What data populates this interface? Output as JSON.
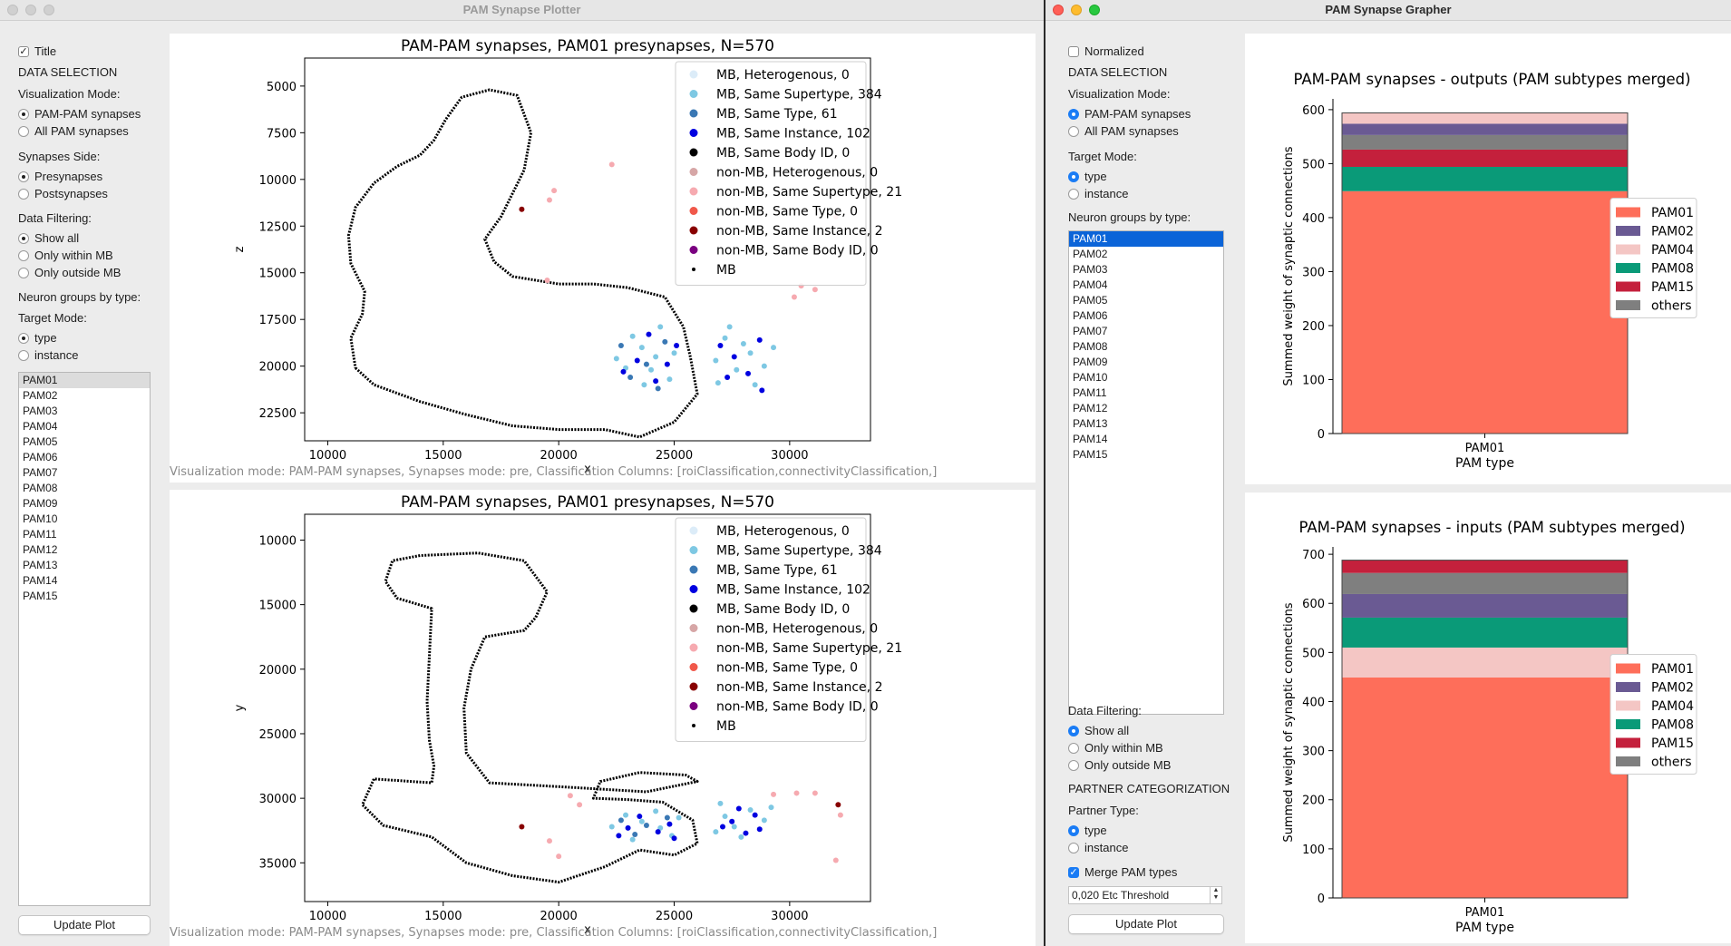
{
  "plotter": {
    "title": "PAM Synapse Plotter",
    "title_checkbox": "Title",
    "title_checked": true,
    "data_selection": "DATA SELECTION",
    "visualization_mode_label": "Visualization Mode:",
    "vis_modes": [
      "PAM-PAM synapses",
      "All PAM synapses"
    ],
    "vis_selected": 0,
    "synapses_side_label": "Synapses Side:",
    "sides": [
      "Presynapses",
      "Postsynapses"
    ],
    "side_selected": 0,
    "data_filtering_label": "Data Filtering:",
    "filters": [
      "Show all",
      "Only within MB",
      "Only outside MB"
    ],
    "filter_selected": 0,
    "neuron_groups_label": "Neuron groups by type:",
    "target_mode_label": "Target Mode:",
    "target_modes": [
      "type",
      "instance"
    ],
    "target_selected": 0,
    "list_items": [
      "PAM01",
      "PAM02",
      "PAM03",
      "PAM04",
      "PAM05",
      "PAM06",
      "PAM07",
      "PAM08",
      "PAM09",
      "PAM10",
      "PAM11",
      "PAM12",
      "PAM13",
      "PAM14",
      "PAM15"
    ],
    "list_selected": 0,
    "update_button": "Update Plot",
    "status_text": "Visualization mode: PAM-PAM synapses, Synapses mode: pre,  Classification Columns: [roiClassification,connectivityClassification,]"
  },
  "grapher": {
    "title": "PAM Synapse Grapher",
    "normalized_label": "Normalized",
    "normalized_checked": false,
    "data_selection": "DATA SELECTION",
    "visualization_mode_label": "Visualization Mode:",
    "vis_modes": [
      "PAM-PAM synapses",
      "All PAM synapses"
    ],
    "vis_selected": 0,
    "target_mode_label": "Target Mode:",
    "target_modes": [
      "type",
      "instance"
    ],
    "target_selected": 0,
    "neuron_groups_label": "Neuron groups by type:",
    "list_items": [
      "PAM01",
      "PAM02",
      "PAM03",
      "PAM04",
      "PAM05",
      "PAM06",
      "PAM07",
      "PAM08",
      "PAM09",
      "PAM10",
      "PAM11",
      "PAM12",
      "PAM13",
      "PAM14",
      "PAM15"
    ],
    "list_selected": 0,
    "data_filtering_label": "Data Filtering:",
    "filters": [
      "Show all",
      "Only within MB",
      "Only outside MB"
    ],
    "filter_selected": 0,
    "partner_categorization": "PARTNER CATEGORIZATION",
    "partner_type_label": "Partner Type:",
    "partner_types": [
      "type",
      "instance"
    ],
    "partner_selected": 0,
    "merge_label": "Merge PAM types",
    "merge_checked": true,
    "threshold_value": "0,020 Etc Threshold",
    "update_button": "Update Plot"
  },
  "colors": {
    "pam01": "#fe6e5a",
    "pam02": "#6a5a93",
    "pam04": "#f4c6c4",
    "pam08": "#0a9a78",
    "pam15": "#c4203c",
    "others": "#7f7f7f",
    "accent": "#1a7cf5"
  },
  "chart_data": [
    {
      "type": "scatter",
      "title": "PAM-PAM synapses, PAM01 presynapses, N=570",
      "xlabel": "x",
      "ylabel": "z",
      "xlim": [
        9000,
        33500
      ],
      "ylim": [
        24000,
        3500
      ],
      "y_inverted": true,
      "xticks": [
        10000,
        15000,
        20000,
        25000,
        30000
      ],
      "yticks": [
        5000,
        7500,
        10000,
        12500,
        15000,
        17500,
        20000,
        22500
      ],
      "legend_position": "upper right",
      "legend": [
        {
          "label": "MB, Heterogenous, 0",
          "color": "#dcecf8"
        },
        {
          "label": "MB, Same Supertype, 384",
          "color": "#7ec8e3"
        },
        {
          "label": "MB, Same Type, 61",
          "color": "#3a78b4"
        },
        {
          "label": "MB, Same Instance, 102",
          "color": "#0000e0"
        },
        {
          "label": "MB, Same Body ID, 0",
          "color": "#000000"
        },
        {
          "label": "non-MB, Heterogenous, 0",
          "color": "#d6a6a6"
        },
        {
          "label": "non-MB, Same Supertype, 21",
          "color": "#f6aab0"
        },
        {
          "label": "non-MB, Same Type, 0",
          "color": "#f0584a"
        },
        {
          "label": "non-MB, Same Instance, 2",
          "color": "#880000"
        },
        {
          "label": "non-MB, Same Body ID, 0",
          "color": "#7a0080"
        },
        {
          "label": "MB",
          "color": "#000000",
          "small": true
        }
      ],
      "outline": [
        [
          11200,
          20100
        ],
        [
          12000,
          21000
        ],
        [
          14000,
          21900
        ],
        [
          16000,
          22600
        ],
        [
          18000,
          23200
        ],
        [
          20000,
          23400
        ],
        [
          22000,
          23400
        ],
        [
          23500,
          23800
        ],
        [
          25000,
          23000
        ],
        [
          26000,
          21500
        ],
        [
          25700,
          19500
        ],
        [
          25400,
          17900
        ],
        [
          24600,
          16300
        ],
        [
          23000,
          15800
        ],
        [
          21500,
          15600
        ],
        [
          20000,
          15600
        ],
        [
          18000,
          15200
        ],
        [
          17200,
          14400
        ],
        [
          16800,
          13200
        ],
        [
          17500,
          12000
        ],
        [
          18500,
          9500
        ],
        [
          18800,
          7500
        ],
        [
          18200,
          5500
        ],
        [
          17000,
          5200
        ],
        [
          15800,
          5600
        ],
        [
          15100,
          6800
        ],
        [
          14600,
          7900
        ],
        [
          14000,
          8700
        ],
        [
          13000,
          9300
        ],
        [
          12000,
          10200
        ],
        [
          11200,
          11500
        ],
        [
          10900,
          13000
        ],
        [
          11000,
          14500
        ],
        [
          11600,
          16000
        ],
        [
          11500,
          17200
        ],
        [
          11000,
          18500
        ],
        [
          11200,
          20100
        ]
      ],
      "points": [
        {
          "x": 23600,
          "y": 19000,
          "s": 0
        },
        {
          "x": 24200,
          "y": 19500,
          "s": 0
        },
        {
          "x": 22900,
          "y": 20100,
          "s": 0
        },
        {
          "x": 24800,
          "y": 20700,
          "s": 0
        },
        {
          "x": 23200,
          "y": 18400,
          "s": 0
        },
        {
          "x": 24400,
          "y": 17900,
          "s": 0
        },
        {
          "x": 25000,
          "y": 19300,
          "s": 0
        },
        {
          "x": 23700,
          "y": 21000,
          "s": 0
        },
        {
          "x": 22500,
          "y": 19600,
          "s": 0
        },
        {
          "x": 24000,
          "y": 20200,
          "s": 0
        },
        {
          "x": 27200,
          "y": 18500,
          "s": 0
        },
        {
          "x": 28300,
          "y": 19300,
          "s": 0
        },
        {
          "x": 27700,
          "y": 20200,
          "s": 0
        },
        {
          "x": 28900,
          "y": 20000,
          "s": 0
        },
        {
          "x": 26800,
          "y": 19700,
          "s": 0
        },
        {
          "x": 28500,
          "y": 21000,
          "s": 0
        },
        {
          "x": 27400,
          "y": 17900,
          "s": 0
        },
        {
          "x": 29300,
          "y": 19000,
          "s": 0
        },
        {
          "x": 28000,
          "y": 18800,
          "s": 0
        },
        {
          "x": 26900,
          "y": 20900,
          "s": 0
        },
        {
          "x": 23800,
          "y": 19900,
          "s": 1
        },
        {
          "x": 24600,
          "y": 18700,
          "s": 1
        },
        {
          "x": 23100,
          "y": 20600,
          "s": 1
        },
        {
          "x": 24300,
          "y": 21200,
          "s": 1
        },
        {
          "x": 22700,
          "y": 18900,
          "s": 1
        },
        {
          "x": 23400,
          "y": 19700,
          "s": 2
        },
        {
          "x": 24700,
          "y": 19900,
          "s": 2
        },
        {
          "x": 23900,
          "y": 18300,
          "s": 2
        },
        {
          "x": 22800,
          "y": 20300,
          "s": 2
        },
        {
          "x": 24200,
          "y": 20800,
          "s": 2
        },
        {
          "x": 25100,
          "y": 18900,
          "s": 2
        },
        {
          "x": 27600,
          "y": 19500,
          "s": 2
        },
        {
          "x": 28700,
          "y": 18600,
          "s": 2
        },
        {
          "x": 27300,
          "y": 20600,
          "s": 2
        },
        {
          "x": 28200,
          "y": 20400,
          "s": 2
        },
        {
          "x": 27000,
          "y": 18900,
          "s": 2
        },
        {
          "x": 28800,
          "y": 21300,
          "s": 2
        },
        {
          "x": 22300,
          "y": 9200,
          "s": 3
        },
        {
          "x": 19800,
          "y": 10600,
          "s": 3
        },
        {
          "x": 19600,
          "y": 11100,
          "s": 3
        },
        {
          "x": 19500,
          "y": 15400,
          "s": 3
        },
        {
          "x": 30500,
          "y": 15700,
          "s": 3
        },
        {
          "x": 31100,
          "y": 15900,
          "s": 3
        },
        {
          "x": 32000,
          "y": 12000,
          "s": 3
        },
        {
          "x": 30200,
          "y": 16300,
          "s": 3
        },
        {
          "x": 18400,
          "y": 11600,
          "s": 4
        }
      ]
    },
    {
      "type": "scatter",
      "title": "PAM-PAM synapses, PAM01 presynapses, N=570",
      "xlabel": "x",
      "ylabel": "y",
      "xlim": [
        9000,
        33500
      ],
      "ylim": [
        38000,
        8000
      ],
      "y_inverted": true,
      "xticks": [
        10000,
        15000,
        20000,
        25000,
        30000
      ],
      "yticks": [
        10000,
        15000,
        20000,
        25000,
        30000,
        35000
      ],
      "legend_position": "upper right",
      "legend_same_as_above": true,
      "outline": [
        [
          12000,
          28500
        ],
        [
          11500,
          30500
        ],
        [
          12400,
          32100
        ],
        [
          14500,
          33000
        ],
        [
          16000,
          35000
        ],
        [
          18000,
          36000
        ],
        [
          20000,
          36500
        ],
        [
          22000,
          35300
        ],
        [
          23500,
          34000
        ],
        [
          25000,
          34400
        ],
        [
          26000,
          33500
        ],
        [
          25800,
          31700
        ],
        [
          24500,
          30300
        ],
        [
          23000,
          30100
        ],
        [
          21500,
          30000
        ],
        [
          21800,
          28700
        ],
        [
          23500,
          28000
        ],
        [
          25500,
          28200
        ],
        [
          26000,
          28700
        ],
        [
          23800,
          29500
        ],
        [
          20000,
          29100
        ],
        [
          17000,
          28800
        ],
        [
          16000,
          26500
        ],
        [
          15900,
          23000
        ],
        [
          16200,
          20000
        ],
        [
          16800,
          17500
        ],
        [
          18500,
          17000
        ],
        [
          19000,
          16000
        ],
        [
          19500,
          14000
        ],
        [
          18500,
          11600
        ],
        [
          16500,
          11000
        ],
        [
          14000,
          11200
        ],
        [
          12800,
          11600
        ],
        [
          12500,
          13200
        ],
        [
          13000,
          14500
        ],
        [
          14500,
          15300
        ],
        [
          14400,
          19000
        ],
        [
          14300,
          22500
        ],
        [
          14400,
          25500
        ],
        [
          14600,
          27500
        ],
        [
          14500,
          28800
        ],
        [
          12000,
          28500
        ]
      ],
      "points": [
        {
          "x": 23600,
          "y": 31800,
          "s": 0
        },
        {
          "x": 24400,
          "y": 32300,
          "s": 0
        },
        {
          "x": 22900,
          "y": 31300,
          "s": 0
        },
        {
          "x": 24900,
          "y": 32900,
          "s": 0
        },
        {
          "x": 23200,
          "y": 33200,
          "s": 0
        },
        {
          "x": 24200,
          "y": 31000,
          "s": 0
        },
        {
          "x": 22300,
          "y": 32200,
          "s": 0
        },
        {
          "x": 25200,
          "y": 31500,
          "s": 0
        },
        {
          "x": 27200,
          "y": 31400,
          "s": 0
        },
        {
          "x": 28300,
          "y": 30900,
          "s": 0
        },
        {
          "x": 27600,
          "y": 32200,
          "s": 0
        },
        {
          "x": 28900,
          "y": 31700,
          "s": 0
        },
        {
          "x": 26800,
          "y": 32600,
          "s": 0
        },
        {
          "x": 27900,
          "y": 33000,
          "s": 0
        },
        {
          "x": 29200,
          "y": 30700,
          "s": 0
        },
        {
          "x": 27000,
          "y": 30400,
          "s": 0
        },
        {
          "x": 23800,
          "y": 32100,
          "s": 1
        },
        {
          "x": 24700,
          "y": 31500,
          "s": 1
        },
        {
          "x": 23300,
          "y": 32800,
          "s": 1
        },
        {
          "x": 22700,
          "y": 31700,
          "s": 1
        },
        {
          "x": 23500,
          "y": 31400,
          "s": 2
        },
        {
          "x": 24300,
          "y": 32600,
          "s": 2
        },
        {
          "x": 23000,
          "y": 32300,
          "s": 2
        },
        {
          "x": 24800,
          "y": 32000,
          "s": 2
        },
        {
          "x": 22600,
          "y": 32900,
          "s": 2
        },
        {
          "x": 25000,
          "y": 33100,
          "s": 2
        },
        {
          "x": 27500,
          "y": 31800,
          "s": 2
        },
        {
          "x": 28500,
          "y": 31300,
          "s": 2
        },
        {
          "x": 27100,
          "y": 32200,
          "s": 2
        },
        {
          "x": 28700,
          "y": 32400,
          "s": 2
        },
        {
          "x": 27800,
          "y": 30800,
          "s": 2
        },
        {
          "x": 28100,
          "y": 32700,
          "s": 2
        },
        {
          "x": 20500,
          "y": 29800,
          "s": 3
        },
        {
          "x": 20900,
          "y": 30500,
          "s": 3
        },
        {
          "x": 19600,
          "y": 33300,
          "s": 3
        },
        {
          "x": 20000,
          "y": 34500,
          "s": 3
        },
        {
          "x": 29300,
          "y": 29700,
          "s": 3
        },
        {
          "x": 30300,
          "y": 29600,
          "s": 3
        },
        {
          "x": 31100,
          "y": 29600,
          "s": 3
        },
        {
          "x": 32200,
          "y": 31300,
          "s": 3
        },
        {
          "x": 32000,
          "y": 34800,
          "s": 3
        },
        {
          "x": 18400,
          "y": 32200,
          "s": 4
        },
        {
          "x": 32100,
          "y": 30500,
          "s": 4
        }
      ]
    },
    {
      "type": "bar",
      "stacked": true,
      "title": "PAM-PAM synapses - outputs (PAM subtypes merged)",
      "xlabel": "PAM type",
      "ylabel": "Summed weight of synaptic connections",
      "categories": [
        "PAM01"
      ],
      "ylim": [
        0,
        620
      ],
      "yticks": [
        0,
        100,
        200,
        300,
        400,
        500,
        600
      ],
      "legend_position": "center right",
      "series": [
        {
          "name": "PAM01",
          "values": [
            449
          ]
        },
        {
          "name": "PAM02",
          "values": [
            0
          ]
        },
        {
          "name": "PAM04",
          "values": [
            0
          ]
        },
        {
          "name": "PAM08",
          "values": [
            45
          ]
        },
        {
          "name": "PAM15",
          "values": [
            32
          ]
        },
        {
          "name": "others",
          "values": [
            27
          ]
        },
        {
          "name": "PAM02",
          "values": [
            21
          ],
          "legend": false
        },
        {
          "name": "PAM04",
          "values": [
            20
          ],
          "legend": false
        }
      ],
      "legend_entries": [
        "PAM01",
        "PAM02",
        "PAM04",
        "PAM08",
        "PAM15",
        "others"
      ]
    },
    {
      "type": "bar",
      "stacked": true,
      "title": "PAM-PAM synapses - inputs (PAM subtypes merged)",
      "xlabel": "PAM type",
      "ylabel": "Summed weight of synaptic connections",
      "categories": [
        "PAM01"
      ],
      "ylim": [
        0,
        715
      ],
      "yticks": [
        0,
        100,
        200,
        300,
        400,
        500,
        600,
        700
      ],
      "legend_position": "center right",
      "series": [
        {
          "name": "PAM01",
          "values": [
            449
          ]
        },
        {
          "name": "PAM04",
          "values": [
            61
          ]
        },
        {
          "name": "PAM08",
          "values": [
            61
          ]
        },
        {
          "name": "PAM02",
          "values": [
            48
          ]
        },
        {
          "name": "others",
          "values": [
            43
          ]
        },
        {
          "name": "PAM15",
          "values": [
            26
          ]
        }
      ],
      "legend_entries": [
        "PAM01",
        "PAM02",
        "PAM04",
        "PAM08",
        "PAM15",
        "others"
      ]
    }
  ]
}
